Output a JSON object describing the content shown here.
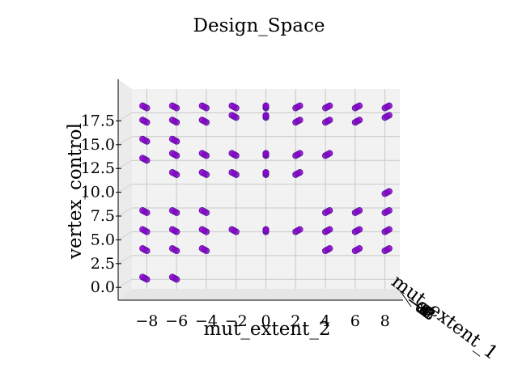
{
  "chart_data": {
    "type": "scatter",
    "projection": "3d",
    "title": "Design_Space",
    "xlabel": "mut_extent_2",
    "ylabel": "vertex_control",
    "zlabel": "mut_extent_1",
    "xlim": [
      -9,
      9
    ],
    "ylim": [
      -1,
      20
    ],
    "xticks": [
      -8,
      -6,
      -4,
      -2,
      0,
      2,
      4,
      6,
      8
    ],
    "xtick_labels": [
      "−8",
      "−6",
      "−4",
      "−2",
      "0",
      "2",
      "4",
      "6",
      "8"
    ],
    "yticks": [
      0.0,
      2.5,
      5.0,
      7.5,
      10.0,
      12.5,
      15.0,
      17.5
    ],
    "ytick_labels": [
      "0.0",
      "2.5",
      "5.0",
      "7.5",
      "10.0",
      "12.5",
      "15.0",
      "17.5"
    ],
    "zticks": [
      -8,
      -6,
      -4,
      -2,
      0,
      2,
      4,
      6,
      8
    ],
    "ztick_labels": [
      "−8",
      "−6",
      "−4",
      "−2",
      "0",
      "2",
      "4",
      "6",
      "8"
    ],
    "grid": true,
    "marker_color": "#9400d3",
    "marker_edge_color": "#5a1aa0",
    "points": [
      {
        "x": -8,
        "y": 18
      },
      {
        "x": -6,
        "y": 18
      },
      {
        "x": -4,
        "y": 18
      },
      {
        "x": -2,
        "y": 18
      },
      {
        "x": 0,
        "y": 18
      },
      {
        "x": 2,
        "y": 18
      },
      {
        "x": 4,
        "y": 18
      },
      {
        "x": 6,
        "y": 18
      },
      {
        "x": 8,
        "y": 18
      },
      {
        "x": -8,
        "y": 16.5
      },
      {
        "x": -6,
        "y": 16.5
      },
      {
        "x": -4,
        "y": 16.5
      },
      {
        "x": -2,
        "y": 17
      },
      {
        "x": 0,
        "y": 17
      },
      {
        "x": 2,
        "y": 16.5
      },
      {
        "x": 4,
        "y": 16.5
      },
      {
        "x": 6,
        "y": 16.5
      },
      {
        "x": 8,
        "y": 17
      },
      {
        "x": -8,
        "y": 14.5
      },
      {
        "x": -6,
        "y": 14.5
      },
      {
        "x": -8,
        "y": 12.5
      },
      {
        "x": -6,
        "y": 13
      },
      {
        "x": -4,
        "y": 13
      },
      {
        "x": -2,
        "y": 13
      },
      {
        "x": 0,
        "y": 13
      },
      {
        "x": 2,
        "y": 13
      },
      {
        "x": 4,
        "y": 13
      },
      {
        "x": -6,
        "y": 11
      },
      {
        "x": -4,
        "y": 11
      },
      {
        "x": -2,
        "y": 11
      },
      {
        "x": 0,
        "y": 11
      },
      {
        "x": 2,
        "y": 11
      },
      {
        "x": 8,
        "y": 9
      },
      {
        "x": -8,
        "y": 7
      },
      {
        "x": -6,
        "y": 7
      },
      {
        "x": -4,
        "y": 7
      },
      {
        "x": 4,
        "y": 7
      },
      {
        "x": 6,
        "y": 7
      },
      {
        "x": 8,
        "y": 7
      },
      {
        "x": -8,
        "y": 5
      },
      {
        "x": -6,
        "y": 5
      },
      {
        "x": -4,
        "y": 5
      },
      {
        "x": -2,
        "y": 5
      },
      {
        "x": 0,
        "y": 5
      },
      {
        "x": 2,
        "y": 5
      },
      {
        "x": 4,
        "y": 5
      },
      {
        "x": 6,
        "y": 5
      },
      {
        "x": 8,
        "y": 5
      },
      {
        "x": -8,
        "y": 3
      },
      {
        "x": -6,
        "y": 3
      },
      {
        "x": -4,
        "y": 3
      },
      {
        "x": 4,
        "y": 3
      },
      {
        "x": 6,
        "y": 3
      },
      {
        "x": 8,
        "y": 3
      },
      {
        "x": -8,
        "y": 0
      },
      {
        "x": -6,
        "y": 0
      }
    ]
  }
}
